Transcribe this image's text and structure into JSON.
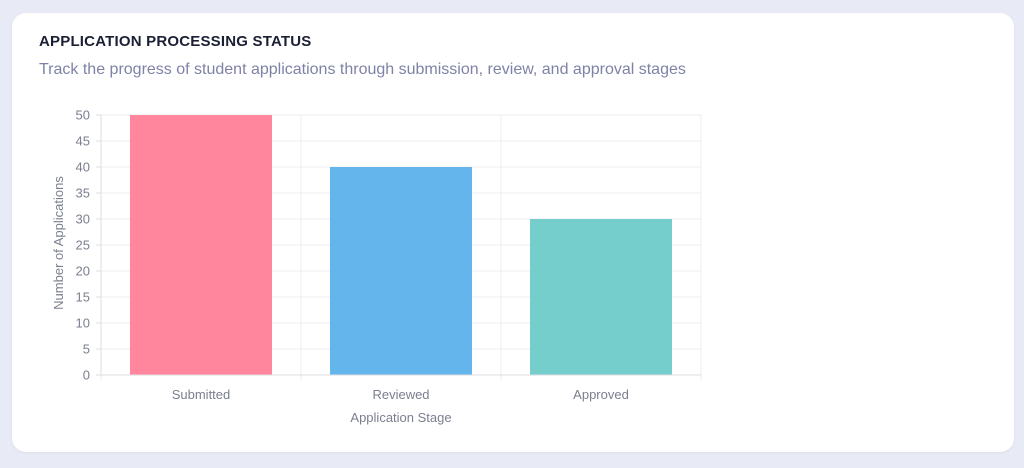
{
  "header": {
    "title": "APPLICATION PROCESSING STATUS",
    "subtitle": "Track the progress of student applications through submission, review, and approval stages"
  },
  "chart_data": {
    "type": "bar",
    "categories": [
      "Submitted",
      "Reviewed",
      "Approved"
    ],
    "values": [
      50,
      40,
      30
    ],
    "xlabel": "Application Stage",
    "ylabel": "Number of Applications",
    "ylim": [
      0,
      50
    ],
    "yticks": [
      0,
      5,
      10,
      15,
      20,
      25,
      30,
      35,
      40,
      45,
      50
    ],
    "grid": true,
    "legend": "none",
    "colors": [
      "#ff869c",
      "#65b5ed",
      "#75cdcc"
    ]
  }
}
